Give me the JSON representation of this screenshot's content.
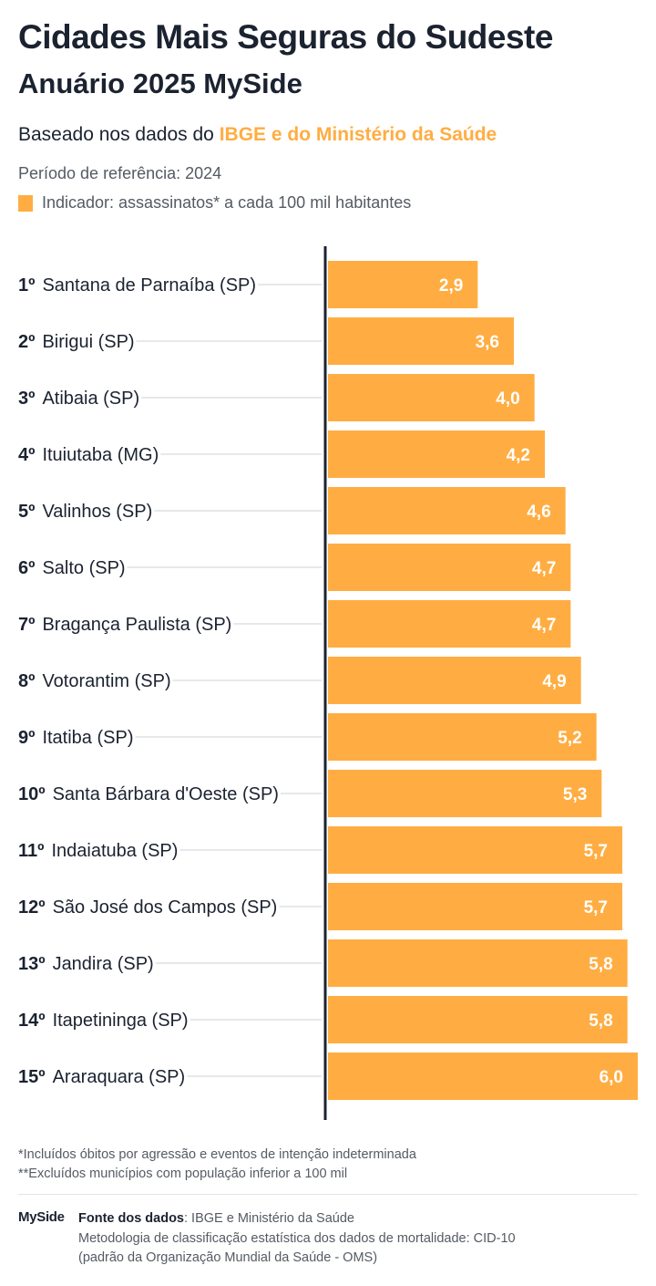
{
  "header": {
    "title": "Cidades Mais Seguras do Sudeste",
    "subtitle": "Anuário 2025 MySide",
    "based_prefix": "Baseado nos dados do ",
    "based_highlight": "IBGE e do Ministério da Saúde",
    "period": "Período de referência: 2024",
    "legend": "Indicador: assassinatos* a cada 100 mil habitantes"
  },
  "colors": {
    "accent": "#ffad42",
    "text": "#1b2230",
    "muted": "#555a63",
    "axis": "#1b2230",
    "leader": "#cfd2d7"
  },
  "chart_data": {
    "type": "bar",
    "orientation": "horizontal",
    "title": "Cidades Mais Seguras do Sudeste",
    "categories": [
      {
        "rank": "1º",
        "name": "Santana de Parnaíba (SP)"
      },
      {
        "rank": "2º",
        "name": "Birigui (SP)"
      },
      {
        "rank": "3º",
        "name": "Atibaia (SP)"
      },
      {
        "rank": "4º",
        "name": "Ituiutaba (MG)"
      },
      {
        "rank": "5º",
        "name": "Valinhos (SP)"
      },
      {
        "rank": "6º",
        "name": "Salto (SP)"
      },
      {
        "rank": "7º",
        "name": "Bragança Paulista (SP)"
      },
      {
        "rank": "8º",
        "name": "Votorantim (SP)"
      },
      {
        "rank": "9º",
        "name": "Itatiba (SP)"
      },
      {
        "rank": "10º",
        "name": "Santa Bárbara d'Oeste (SP)"
      },
      {
        "rank": "11º",
        "name": "Indaiatuba (SP)"
      },
      {
        "rank": "12º",
        "name": "São José dos Campos (SP)"
      },
      {
        "rank": "13º",
        "name": "Jandira (SP)"
      },
      {
        "rank": "14º",
        "name": "Itapetininga (SP)"
      },
      {
        "rank": "15º",
        "name": "Araraquara (SP)"
      }
    ],
    "values": [
      2.9,
      3.6,
      4.0,
      4.2,
      4.6,
      4.7,
      4.7,
      4.9,
      5.2,
      5.3,
      5.7,
      5.7,
      5.8,
      5.8,
      6.0
    ],
    "value_labels": [
      "2,9",
      "3,6",
      "4,0",
      "4,2",
      "4,6",
      "4,7",
      "4,7",
      "4,9",
      "5,2",
      "5,3",
      "5,7",
      "5,7",
      "5,8",
      "5,8",
      "6,0"
    ],
    "xlim": [
      0,
      6.0
    ],
    "grid": false,
    "legend": "top-left"
  },
  "footer": {
    "note1": "*Incluídos óbitos por agressão e eventos de intenção indeterminada",
    "note2": "**Excluídos municípios com população inferior a 100 mil",
    "logo": "MySide",
    "source_label": "Fonte dos dados",
    "source_text": ": IBGE e Ministério da Saúde",
    "method1": "Metodologia de classificação estatística dos dados de mortalidade: CID-10",
    "method2": "(padrão da Organização Mundial da Saúde - OMS)"
  }
}
